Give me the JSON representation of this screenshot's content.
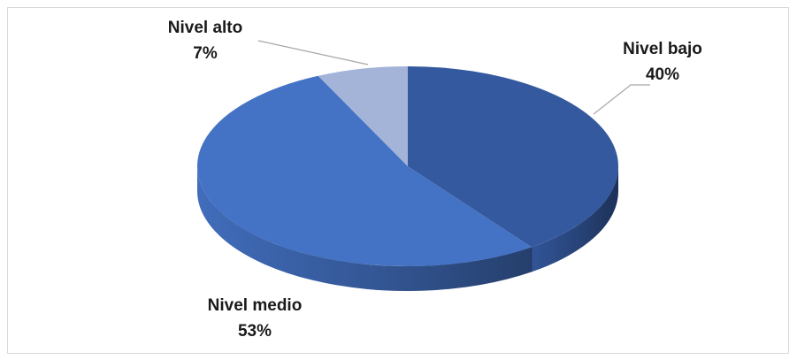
{
  "chart_data": {
    "type": "pie",
    "style": "3d",
    "title": "",
    "legend": "none",
    "slices": [
      {
        "label": "Nivel bajo",
        "value": 40,
        "value_label": "40%",
        "color": "#34599F"
      },
      {
        "label": "Nivel medio",
        "value": 53,
        "value_label": "53%",
        "color": "#4472C4"
      },
      {
        "label": "Nivel alto",
        "value": 7,
        "value_label": "7%",
        "color": "#A3B4D8"
      }
    ],
    "leader_line_color": "#a6a6a6"
  }
}
